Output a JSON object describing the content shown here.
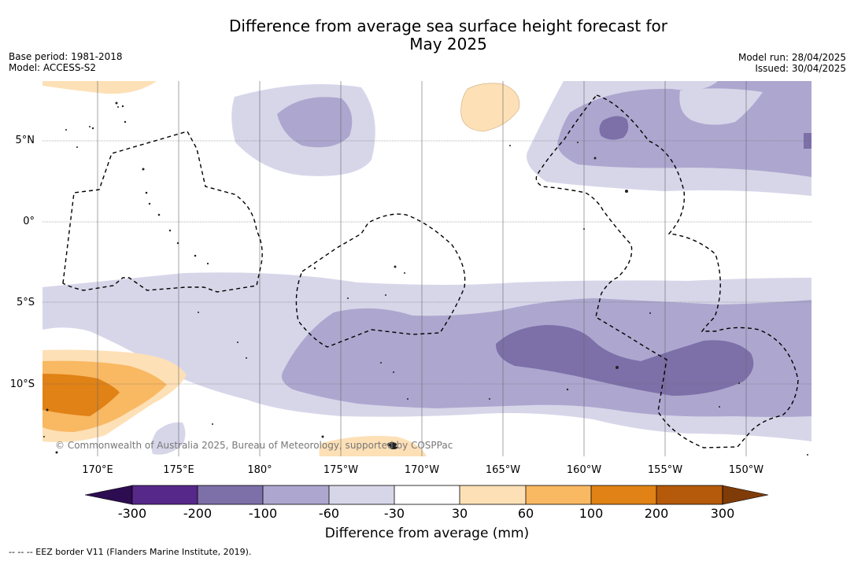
{
  "title_line1": "Difference from average sea surface height forecast for",
  "title_line2": "May 2025",
  "base_period": "Base period: 1981-2018",
  "model": "Model: ACCESS-S2",
  "model_run": "Model run: 28/04/2025",
  "issued": "Issued: 30/04/2025",
  "latitude_labels": [
    "5°N",
    "0°",
    "5°S",
    "10°S"
  ],
  "longitude_labels": [
    "170°E",
    "175°E",
    "180°",
    "175°W",
    "170°W",
    "165°W",
    "160°W",
    "155°W",
    "150°W"
  ],
  "copyright": "© Commonwealth of Australia 2025, Bureau of Meteorology, supported by COSPPac",
  "colorbar": {
    "label": "Difference from average (mm)",
    "ticks": [
      "-300",
      "-200",
      "-100",
      "-60",
      "-30",
      "30",
      "60",
      "100",
      "200",
      "300"
    ],
    "colors": {
      "extend_low": "#2d0c52",
      "lt_-300": "#52227f",
      "-300_-200": "#56288a",
      "-200_-100": "#7d70a9",
      "-100_-60": "#ada7cf",
      "-60_-30": "#d7d6e9",
      "-30_30": "#ffffff",
      "30_60": "#fde0b6",
      "60_100": "#f9b862",
      "100_200": "#e08216",
      "200_300": "#b55a0a",
      "extend_high": "#7f3b08"
    }
  },
  "footnote": "-- -- -- EEZ border V11 (Flanders Marine Institute, 2019)."
}
